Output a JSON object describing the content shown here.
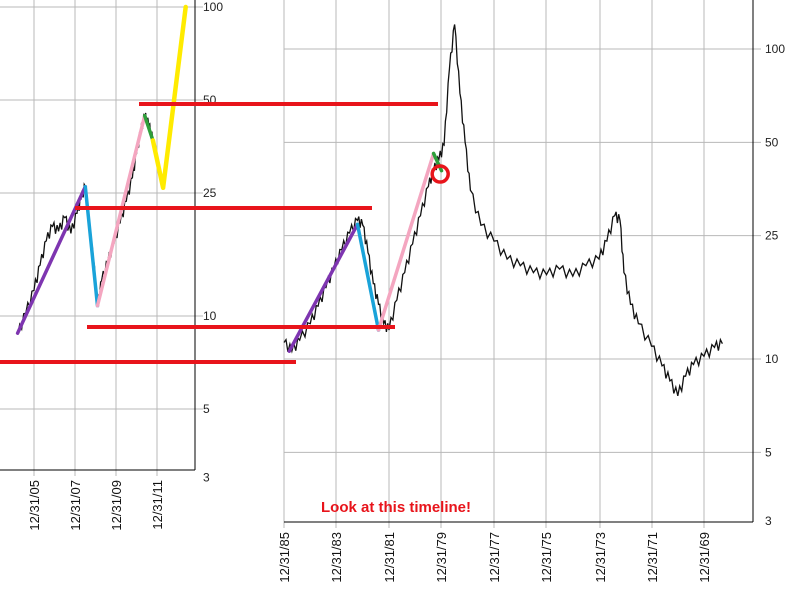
{
  "chart_data": [
    {
      "type": "line",
      "scale": "log",
      "y_ticks": [
        "100",
        "50",
        "25",
        "10",
        "5",
        "3"
      ],
      "y_tick_values": [
        100,
        50,
        25,
        10,
        5,
        3
      ],
      "x_ticks": [
        "12/31/05",
        "12/31/07",
        "12/31/09",
        "12/31/11"
      ],
      "grid": true,
      "series": [
        {
          "color": "#111111",
          "points": [
            [
              2004.2,
              8.7
            ],
            [
              2004.6,
              10.2
            ],
            [
              2005.0,
              12.1
            ],
            [
              2005.3,
              14.6
            ],
            [
              2005.6,
              17.5
            ],
            [
              2005.9,
              19.5
            ],
            [
              2006.2,
              18.8
            ],
            [
              2006.5,
              20.8
            ],
            [
              2006.8,
              18.5
            ],
            [
              2007.1,
              21.5
            ],
            [
              2007.3,
              24.0
            ],
            [
              2007.5,
              26.3
            ],
            [
              2007.7,
              19.0
            ],
            [
              2007.9,
              15.2
            ],
            [
              2008.1,
              10.8
            ],
            [
              2008.3,
              13.0
            ],
            [
              2008.6,
              15.0
            ],
            [
              2008.9,
              17.2
            ],
            [
              2009.2,
              20.0
            ],
            [
              2009.5,
              23.5
            ],
            [
              2009.8,
              28.0
            ],
            [
              2010.0,
              33.5
            ],
            [
              2010.2,
              39.5
            ],
            [
              2010.4,
              44.5
            ],
            [
              2010.6,
              41.5
            ],
            [
              2010.8,
              37.0
            ]
          ]
        }
      ],
      "overlays": [
        {
          "name": "purple-rise",
          "color": "#7e35b0",
          "points": [
            [
              2004.2,
              8.8
            ],
            [
              2007.5,
              26.2
            ]
          ]
        },
        {
          "name": "blue-drop",
          "color": "#1aa3d9",
          "points": [
            [
              2007.5,
              26.2
            ],
            [
              2008.1,
              10.8
            ]
          ]
        },
        {
          "name": "pink-rise",
          "color": "#f4a6c0",
          "points": [
            [
              2008.1,
              10.8
            ],
            [
              2010.4,
              44.5
            ]
          ]
        },
        {
          "name": "green-drop",
          "color": "#2e9e3a",
          "points": [
            [
              2010.4,
              44.5
            ],
            [
              2010.8,
              37.0
            ]
          ]
        },
        {
          "name": "yellow-projection",
          "color": "#ffeb00",
          "points": [
            [
              2010.8,
              37.0
            ],
            [
              2011.3,
              26.0
            ],
            [
              2012.4,
              100.0
            ]
          ]
        }
      ]
    },
    {
      "type": "line",
      "scale": "log",
      "y_ticks": [
        "100",
        "50",
        "25",
        "10",
        "5",
        "3"
      ],
      "y_tick_values": [
        100,
        50,
        25,
        10,
        5,
        3
      ],
      "x_ticks": [
        "12/31/85",
        "12/31/83",
        "12/31/81",
        "12/31/79",
        "12/31/77",
        "12/31/75",
        "12/31/73",
        "12/31/71",
        "12/31/69"
      ],
      "x_order": "reversed",
      "grid": true,
      "annotation": "Look at this timeline!",
      "series": [
        {
          "color": "#111111",
          "points": [
            [
              1986.0,
              11.3
            ],
            [
              1985.7,
              10.6
            ],
            [
              1985.4,
              11.5
            ],
            [
              1985.0,
              13.0
            ],
            [
              1984.7,
              14.8
            ],
            [
              1984.4,
              17.0
            ],
            [
              1984.1,
              19.6
            ],
            [
              1983.8,
              22.5
            ],
            [
              1983.5,
              25.5
            ],
            [
              1983.2,
              28.0
            ],
            [
              1983.0,
              27.0
            ],
            [
              1982.8,
              22.0
            ],
            [
              1982.6,
              17.5
            ],
            [
              1982.4,
              15.0
            ],
            [
              1982.2,
              13.0
            ],
            [
              1982.0,
              12.4
            ],
            [
              1981.7,
              15.5
            ],
            [
              1981.4,
              19.0
            ],
            [
              1981.1,
              23.5
            ],
            [
              1980.8,
              29.0
            ],
            [
              1980.5,
              36.0
            ],
            [
              1980.3,
              40.5
            ],
            [
              1980.1,
              44.0
            ],
            [
              1979.9,
              49.0
            ],
            [
              1979.7,
              86.0
            ],
            [
              1979.5,
              120.0
            ],
            [
              1979.3,
              72.0
            ],
            [
              1979.1,
              50.0
            ],
            [
              1978.9,
              35.0
            ],
            [
              1978.5,
              27.0
            ],
            [
              1978.0,
              24.0
            ],
            [
              1977.5,
              21.0
            ],
            [
              1977.0,
              20.0
            ],
            [
              1976.5,
              19.0
            ],
            [
              1976.0,
              18.7
            ],
            [
              1975.5,
              19.5
            ],
            [
              1975.0,
              18.5
            ],
            [
              1974.5,
              20.0
            ],
            [
              1974.0,
              21.0
            ],
            [
              1973.7,
              24.0
            ],
            [
              1973.4,
              29.0
            ],
            [
              1973.2,
              28.0
            ],
            [
              1973.05,
              19.0
            ],
            [
              1972.8,
              15.0
            ],
            [
              1972.5,
              13.0
            ],
            [
              1972.0,
              11.0
            ],
            [
              1971.6,
              9.5
            ],
            [
              1971.3,
              8.5
            ],
            [
              1971.0,
              7.6
            ],
            [
              1970.7,
              8.8
            ],
            [
              1970.4,
              9.6
            ],
            [
              1970.0,
              10.2
            ],
            [
              1969.6,
              10.9
            ],
            [
              1969.3,
              11.2
            ]
          ]
        }
      ],
      "overlays": [
        {
          "name": "purple-rise",
          "color": "#7e35b0",
          "points": [
            [
              1985.8,
              10.6
            ],
            [
              1983.2,
              27.2
            ]
          ]
        },
        {
          "name": "blue-drop",
          "color": "#1aa3d9",
          "points": [
            [
              1983.2,
              27.2
            ],
            [
              1982.4,
              12.4
            ]
          ]
        },
        {
          "name": "pink-rise",
          "color": "#f4a6c0",
          "points": [
            [
              1982.4,
              12.4
            ],
            [
              1980.3,
              46.0
            ]
          ]
        },
        {
          "name": "green-drop",
          "color": "#2e9e3a",
          "points": [
            [
              1980.3,
              46.0
            ],
            [
              1980.0,
              40.5
            ]
          ]
        }
      ],
      "highlight": {
        "name": "red-circle",
        "color": "#e8141b",
        "point": [
          1980.05,
          39.5
        ]
      }
    }
  ],
  "cross_levels": [
    {
      "name": "level-top",
      "color": "#e8141b"
    },
    {
      "name": "level-upper",
      "color": "#e8141b"
    },
    {
      "name": "level-middle",
      "color": "#e8141b"
    },
    {
      "name": "level-base",
      "color": "#e8141b"
    }
  ]
}
